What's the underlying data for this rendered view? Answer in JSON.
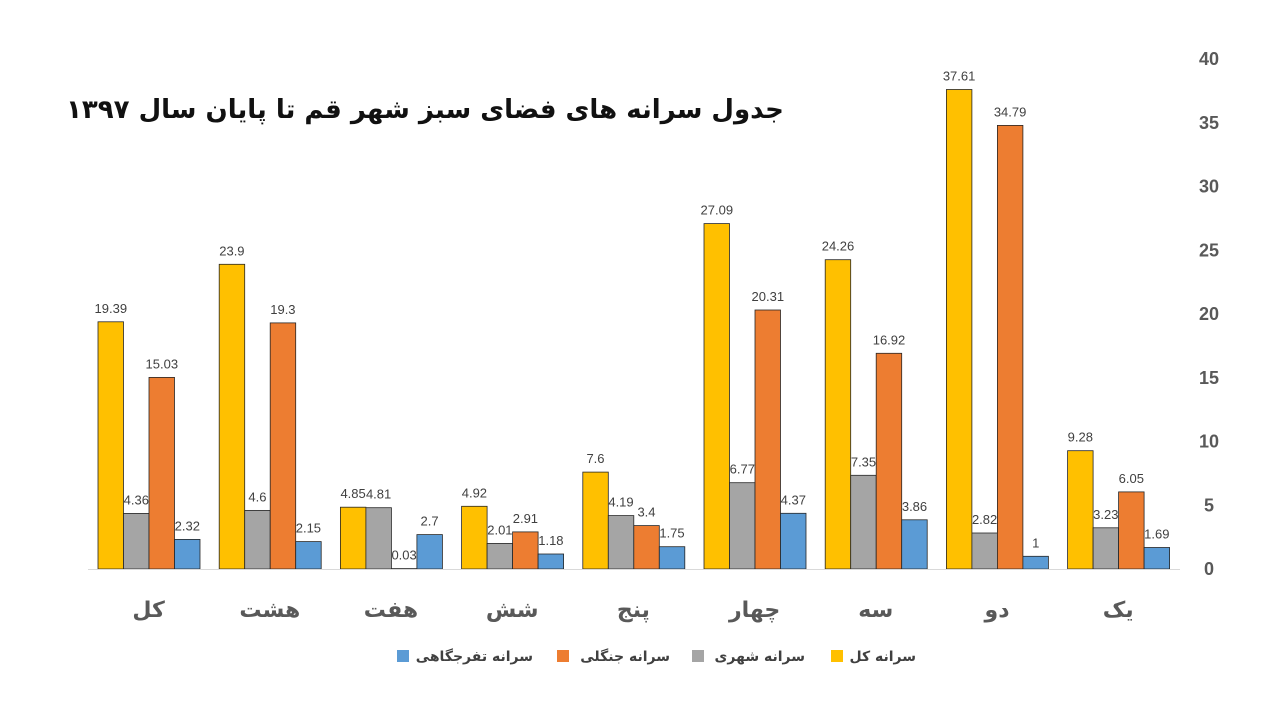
{
  "chart_data": {
    "type": "bar",
    "title": "جدول سرانه های فضای سبز شهر قم تا پایان سال ۱۳۹۷",
    "categories": [
      "کل",
      "هشت",
      "هفت",
      "شش",
      "پنج",
      "چهار",
      "سه",
      "دو",
      "یک"
    ],
    "series": [
      {
        "name": "سرانه کل",
        "color": "#FFC000",
        "values": [
          19.39,
          23.9,
          4.85,
          4.92,
          7.6,
          27.09,
          24.26,
          37.61,
          9.28
        ]
      },
      {
        "name": "سرانه شهری",
        "color": "#A5A5A5",
        "values": [
          4.36,
          4.6,
          4.81,
          2.01,
          4.19,
          6.77,
          7.35,
          2.82,
          3.23
        ]
      },
      {
        "name": "سرانه جنگلی",
        "color": "#ED7D31",
        "values": [
          15.03,
          19.3,
          0.03,
          2.91,
          3.4,
          20.31,
          16.92,
          34.79,
          6.05
        ]
      },
      {
        "name": "سرانه تفرجگاهی",
        "color": "#5B9BD5",
        "values": [
          2.32,
          2.15,
          2.7,
          1.18,
          1.75,
          4.37,
          3.86,
          1,
          1.69
        ]
      }
    ],
    "ylim": [
      0,
      40
    ],
    "yticks": [
      0,
      5,
      10,
      15,
      20,
      25,
      30,
      35,
      40
    ],
    "y_axis_side": "right",
    "grid": false,
    "legend": "bottom"
  }
}
